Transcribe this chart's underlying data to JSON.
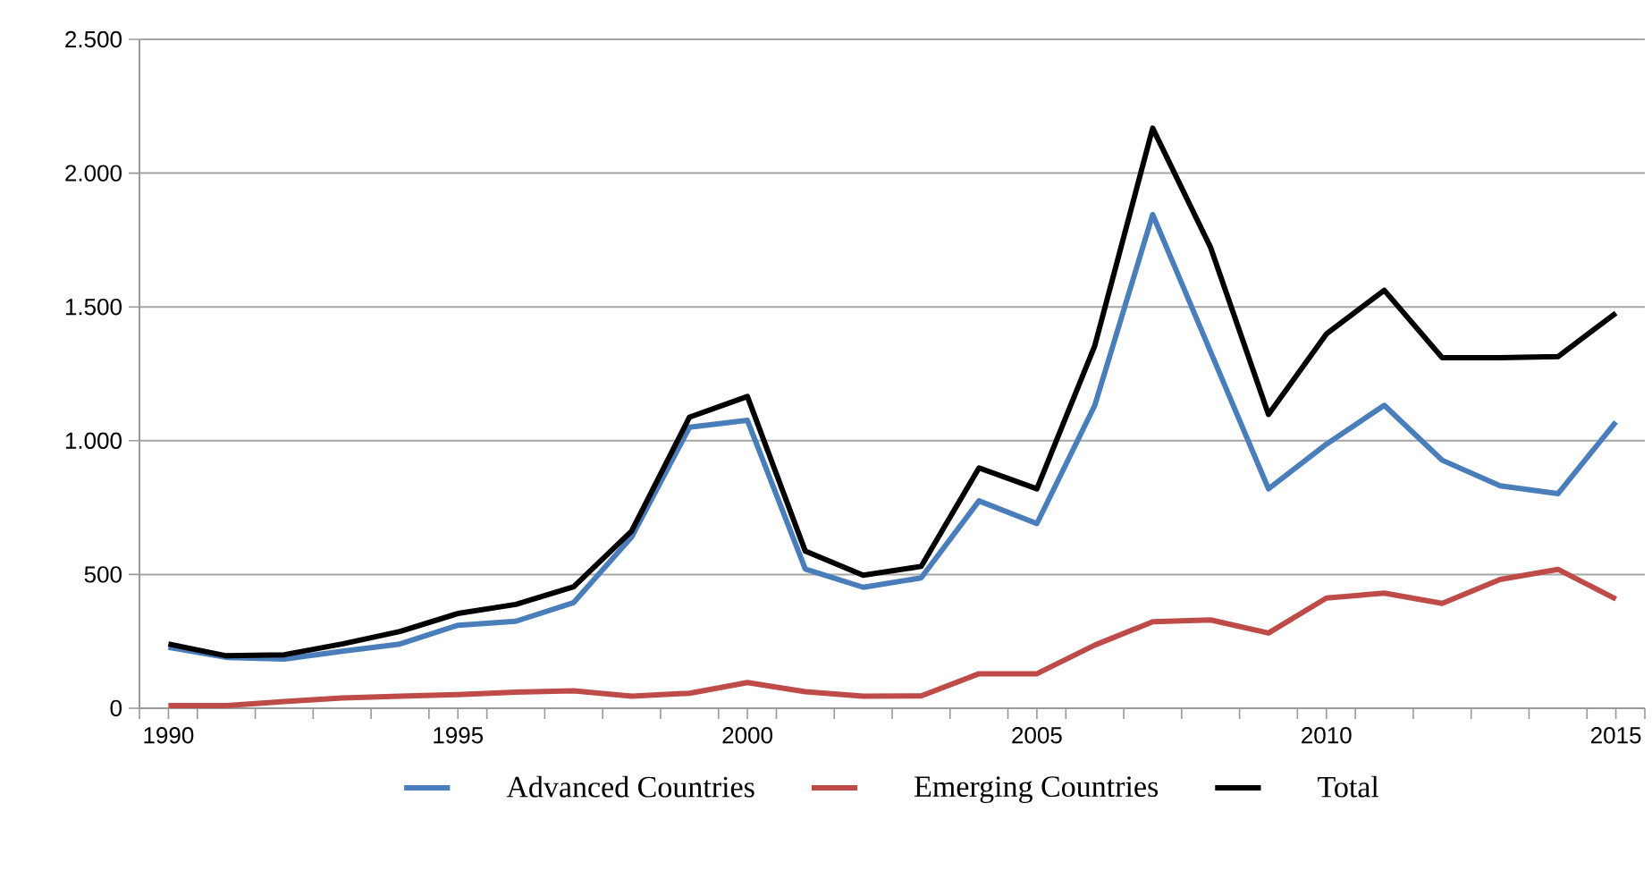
{
  "chart_data": {
    "type": "line",
    "x": [
      1990,
      1991,
      1992,
      1993,
      1994,
      1995,
      1996,
      1997,
      1998,
      1999,
      2000,
      2001,
      2002,
      2003,
      2004,
      2005,
      2006,
      2007,
      2008,
      2009,
      2010,
      2011,
      2012,
      2013,
      2014,
      2015
    ],
    "series": [
      {
        "name": "Advanced Countries",
        "color": "#4a7ebb",
        "values": [
          228,
          190,
          184,
          213,
          240,
          310,
          325,
          395,
          640,
          1050,
          1076,
          520,
          452,
          487,
          775,
          690,
          1132,
          1845,
          1332,
          820,
          987,
          1132,
          927,
          831,
          802,
          1070
        ]
      },
      {
        "name": "Emerging Countries",
        "color": "#be4b48",
        "values": [
          10,
          10,
          25,
          38,
          45,
          51,
          60,
          65,
          45,
          56,
          96,
          62,
          45,
          46,
          129,
          129,
          236,
          323,
          330,
          281,
          412,
          430,
          392,
          481,
          519,
          408
        ]
      },
      {
        "name": "Total",
        "color": "#000000",
        "values": [
          240,
          196,
          200,
          240,
          287,
          354,
          388,
          454,
          662,
          1088,
          1165,
          587,
          497,
          530,
          898,
          820,
          1355,
          2168,
          1722,
          1098,
          1399,
          1562,
          1310,
          1310,
          1314,
          1477
        ]
      }
    ],
    "xlim": [
      1989.5,
      2015.5
    ],
    "xticks": [
      {
        "value": 1989.5,
        "label": null
      },
      1990,
      {
        "value": 1990.5,
        "label": null
      },
      {
        "value": 1991.5,
        "label": null
      },
      {
        "value": 1992.5,
        "label": null
      },
      {
        "value": 1993.5,
        "label": null
      },
      {
        "value": 1994.5,
        "label": null
      },
      1995,
      {
        "value": 1995.5,
        "label": null
      },
      {
        "value": 1996.5,
        "label": null
      },
      {
        "value": 1997.5,
        "label": null
      },
      {
        "value": 1998.5,
        "label": null
      },
      {
        "value": 1999.5,
        "label": null
      },
      2000,
      {
        "value": 2000.5,
        "label": null
      },
      {
        "value": 2001.5,
        "label": null
      },
      {
        "value": 2002.5,
        "label": null
      },
      {
        "value": 2003.5,
        "label": null
      },
      {
        "value": 2004.5,
        "label": null
      },
      2005,
      {
        "value": 2005.5,
        "label": null
      },
      {
        "value": 2006.5,
        "label": null
      },
      {
        "value": 2007.5,
        "label": null
      },
      {
        "value": 2008.5,
        "label": null
      },
      {
        "value": 2009.5,
        "label": null
      },
      2010,
      {
        "value": 2010.5,
        "label": null
      },
      {
        "value": 2011.5,
        "label": null
      },
      {
        "value": 2012.5,
        "label": null
      },
      {
        "value": 2013.5,
        "label": null
      },
      {
        "value": 2014.5,
        "label": null
      },
      2015,
      {
        "value": 2015.5,
        "label": null
      }
    ],
    "ylim": [
      0,
      2500
    ],
    "yticks": [
      0,
      500,
      {
        "value": 1000,
        "label": "1.000"
      },
      {
        "value": 1500,
        "label": "1.500"
      },
      {
        "value": 2000,
        "label": "2.000"
      },
      {
        "value": 2500,
        "label": "2.500"
      }
    ],
    "grid": "y",
    "legend": "bottom",
    "marker": "none",
    "line_style": "solid"
  }
}
